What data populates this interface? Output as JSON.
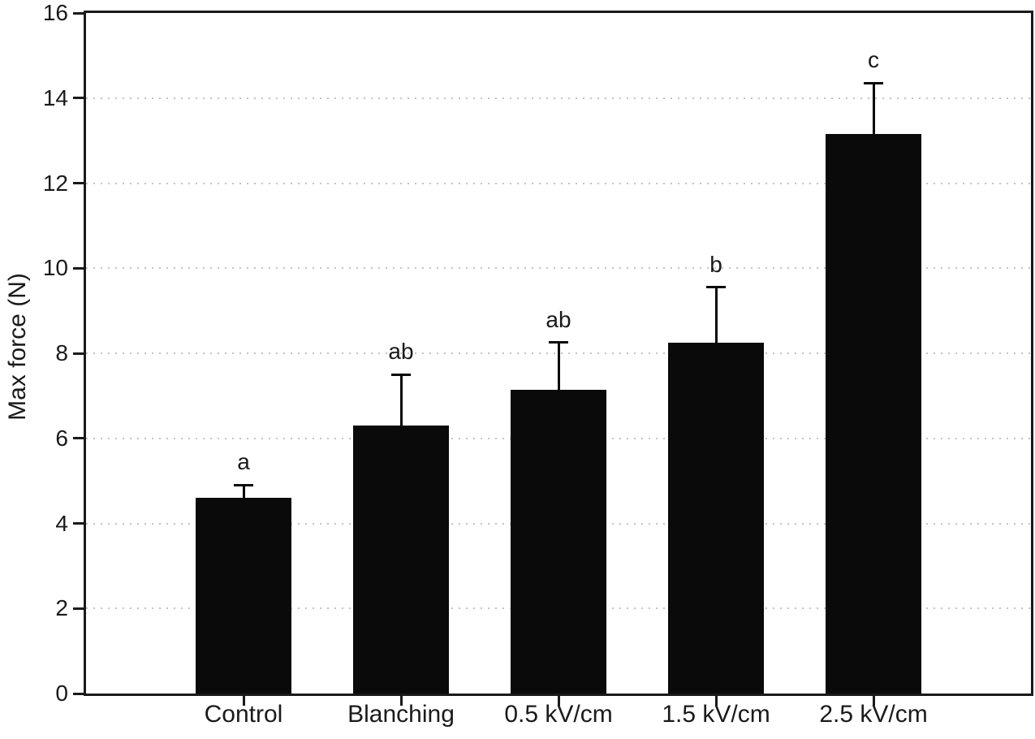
{
  "chart_data": {
    "type": "bar",
    "title": "",
    "xlabel": "",
    "ylabel": "Max force (N)",
    "categories": [
      "Control",
      "Blanching",
      "0.5 kV/cm",
      "1.5 kV/cm",
      "2.5 kV/cm"
    ],
    "values": [
      4.6,
      6.3,
      7.15,
      8.25,
      13.15
    ],
    "errors_upper": [
      0.3,
      1.2,
      1.1,
      1.3,
      1.2
    ],
    "significance_letters": [
      "a",
      "ab",
      "ab",
      "b",
      "c"
    ],
    "ylim": [
      0,
      16
    ],
    "yticks": [
      0,
      2,
      4,
      6,
      8,
      10,
      12,
      14,
      16
    ],
    "grid": {
      "horizontal": true,
      "style": "dotted",
      "color": "#c3c3c3"
    },
    "bar_color": "#0a0a0a",
    "axis_color": "#1a1a1a",
    "plot_background": "#ffffff",
    "legend_position": "none"
  }
}
